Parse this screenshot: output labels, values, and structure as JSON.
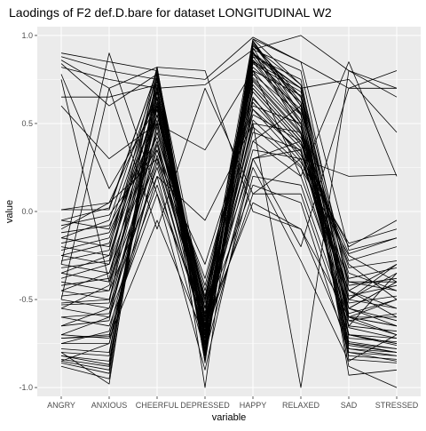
{
  "chart_data": {
    "type": "line",
    "title": "Laodings of F2 def.D.bare for dataset LONGITUDINAL W2",
    "xlabel": "variable",
    "ylabel": "value",
    "categories": [
      "ANGRY",
      "ANXIOUS",
      "CHEERFUL",
      "DEPRESSED",
      "HAPPY",
      "RELAXED",
      "SAD",
      "STRESSED"
    ],
    "ylim": [
      -1.05,
      1.05
    ],
    "yticks": [
      1.0,
      0.5,
      0.0,
      -0.5,
      -1.0
    ],
    "ytick_labels": [
      "1.0",
      "0.5",
      "0.0",
      "-0.5",
      "-1.0"
    ],
    "grid": true,
    "background": "#ebebeb",
    "gridline_color": "#ffffff",
    "line_color": "#000000",
    "series": [
      {
        "values": [
          0.9,
          0.85,
          0.8,
          -0.55,
          0.98,
          0.72,
          -0.55,
          -0.4
        ]
      },
      {
        "values": [
          0.88,
          0.8,
          0.75,
          -0.6,
          0.95,
          0.65,
          -0.6,
          -0.5
        ]
      },
      {
        "values": [
          0.86,
          0.7,
          0.82,
          -0.7,
          0.97,
          0.6,
          -0.5,
          -0.3
        ]
      },
      {
        "values": [
          0.84,
          0.6,
          0.78,
          0.75,
          0.99,
          0.85,
          0.7,
          0.7
        ]
      },
      {
        "values": [
          0.82,
          0.75,
          0.7,
          0.72,
          0.92,
          1.0,
          0.8,
          0.65
        ]
      },
      {
        "values": [
          0.78,
          0.13,
          0.6,
          -0.5,
          0.9,
          0.7,
          0.75,
          0.45
        ]
      },
      {
        "values": [
          0.75,
          -0.4,
          0.55,
          -0.65,
          0.88,
          0.55,
          -0.7,
          -0.75
        ]
      },
      {
        "values": [
          0.65,
          0.65,
          0.72,
          -0.8,
          0.85,
          0.5,
          -0.6,
          -0.6
        ]
      },
      {
        "values": [
          0.6,
          0.3,
          0.5,
          0.35,
          0.8,
          0.2,
          0.85,
          0.2
        ]
      },
      {
        "values": [
          0.01,
          0.01,
          0.8,
          -0.75,
          0.3,
          0.4,
          -0.3,
          -0.5
        ]
      },
      {
        "values": [
          -0.05,
          -0.1,
          0.7,
          -0.6,
          0.5,
          0.45,
          -0.35,
          -0.45
        ]
      },
      {
        "values": [
          -0.1,
          0.05,
          0.65,
          -0.55,
          0.4,
          0.6,
          -0.4,
          -0.4
        ]
      },
      {
        "values": [
          -0.15,
          -0.2,
          0.6,
          -0.7,
          0.45,
          0.35,
          -0.45,
          -0.6
        ]
      },
      {
        "values": [
          -0.2,
          -0.25,
          0.55,
          -0.65,
          0.35,
          0.3,
          -0.5,
          -0.55
        ]
      },
      {
        "values": [
          -0.25,
          -0.3,
          0.45,
          -0.5,
          0.55,
          0.4,
          -0.55,
          -0.65
        ]
      },
      {
        "values": [
          -0.3,
          -0.35,
          0.4,
          -0.75,
          0.6,
          0.5,
          -0.6,
          -0.7
        ]
      },
      {
        "values": [
          -0.35,
          -0.4,
          0.3,
          -0.6,
          0.48,
          0.25,
          -0.25,
          -0.4
        ]
      },
      {
        "values": [
          -0.4,
          -0.45,
          0.2,
          -0.8,
          0.2,
          0.15,
          -0.65,
          -0.35
        ]
      },
      {
        "values": [
          -0.45,
          -0.5,
          0.35,
          -0.55,
          0.3,
          0.35,
          -0.4,
          -0.45
        ]
      },
      {
        "values": [
          -0.5,
          -0.55,
          0.25,
          -0.7,
          0.1,
          0.1,
          -0.7,
          -0.75
        ]
      },
      {
        "values": [
          -0.55,
          -0.6,
          0.15,
          -0.65,
          0.05,
          -0.1,
          -0.75,
          -0.8
        ]
      },
      {
        "values": [
          -0.6,
          -0.65,
          0.1,
          -0.6,
          0.15,
          0.05,
          -0.8,
          -0.85
        ]
      },
      {
        "values": [
          -0.7,
          -0.72,
          -0.05,
          -0.72,
          0.25,
          -0.28,
          -0.85,
          -0.7
        ]
      },
      {
        "values": [
          -0.72,
          -0.71,
          0.28,
          -0.72,
          0.98,
          0.85,
          -0.22,
          -0.15
        ]
      },
      {
        "values": [
          -0.75,
          -0.75,
          0.5,
          -0.58,
          0.92,
          0.8,
          -0.45,
          -0.55
        ]
      },
      {
        "values": [
          -0.78,
          -0.8,
          0.6,
          -0.68,
          0.88,
          0.75,
          -0.6,
          -0.65
        ]
      },
      {
        "values": [
          -0.8,
          -0.82,
          0.7,
          -0.62,
          0.85,
          0.7,
          -0.7,
          -0.72
        ]
      },
      {
        "values": [
          -0.82,
          -0.85,
          0.65,
          -0.7,
          0.9,
          0.65,
          -0.65,
          -0.68
        ]
      },
      {
        "values": [
          -0.84,
          -0.88,
          0.75,
          -0.75,
          0.95,
          0.6,
          -0.72,
          -0.74
        ]
      },
      {
        "values": [
          -0.85,
          -0.9,
          0.8,
          -0.78,
          0.97,
          0.55,
          -0.75,
          -0.78
        ]
      },
      {
        "values": [
          -0.86,
          -0.92,
          0.72,
          -0.82,
          0.93,
          0.5,
          -0.78,
          -0.8
        ]
      },
      {
        "values": [
          -0.88,
          -0.95,
          0.68,
          -0.85,
          0.91,
          0.45,
          -0.8,
          -0.82
        ]
      },
      {
        "values": [
          -0.8,
          -0.98,
          0.78,
          -1.0,
          0.96,
          0.62,
          -0.88,
          -1.0
        ]
      },
      {
        "values": [
          -0.82,
          -0.87,
          0.62,
          -0.72,
          0.89,
          0.7,
          -0.93,
          -0.9
        ]
      },
      {
        "values": [
          -0.7,
          -0.6,
          0.4,
          -0.55,
          0.7,
          0.4,
          -0.5,
          -0.35
        ]
      },
      {
        "values": [
          -0.6,
          -0.58,
          0.45,
          -0.45,
          0.65,
          0.3,
          -0.45,
          -0.3
        ]
      },
      {
        "values": [
          -0.65,
          -0.62,
          0.55,
          -0.5,
          0.75,
          0.45,
          -0.55,
          -0.4
        ]
      },
      {
        "values": [
          -0.52,
          -0.5,
          0.58,
          -0.62,
          0.78,
          0.55,
          -0.62,
          -0.58
        ]
      },
      {
        "values": [
          -0.48,
          -0.45,
          0.62,
          -0.66,
          0.82,
          0.58,
          -0.58,
          -0.5
        ]
      },
      {
        "values": [
          -0.42,
          -0.38,
          0.68,
          -0.58,
          0.86,
          0.62,
          -0.52,
          -0.48
        ]
      },
      {
        "values": [
          -0.38,
          -0.3,
          0.74,
          -0.64,
          0.8,
          0.66,
          -0.48,
          -0.42
        ]
      },
      {
        "values": [
          -0.32,
          -0.28,
          0.78,
          -0.68,
          0.84,
          0.68,
          -0.42,
          -0.38
        ]
      },
      {
        "values": [
          -0.28,
          -0.22,
          0.82,
          -0.74,
          0.94,
          0.72,
          -0.38,
          -0.32
        ]
      },
      {
        "values": [
          -0.22,
          -0.15,
          0.6,
          -0.52,
          0.76,
          0.48,
          -0.32,
          -0.28
        ]
      },
      {
        "values": [
          -0.18,
          -0.12,
          0.5,
          -0.48,
          0.72,
          0.42,
          -0.28,
          -0.2
        ]
      },
      {
        "values": [
          -0.12,
          -0.08,
          0.42,
          -0.42,
          0.68,
          0.38,
          -0.24,
          -0.15
        ]
      },
      {
        "values": [
          -0.08,
          -0.02,
          0.35,
          -0.38,
          0.62,
          0.32,
          -0.2,
          -0.05
        ]
      },
      {
        "values": [
          0.01,
          0.05,
          0.3,
          -0.3,
          0.58,
          0.28,
          -0.18,
          -0.1
        ]
      },
      {
        "values": [
          -0.53,
          -0.52,
          0.82,
          0.8,
          0.0,
          -0.1,
          -0.6,
          -0.65
        ]
      },
      {
        "values": [
          -0.72,
          -0.7,
          0.2,
          -0.05,
          0.5,
          -1.0,
          0.8,
          0.7
        ]
      },
      {
        "values": [
          -0.5,
          0.7,
          -0.1,
          0.7,
          0.1,
          0.3,
          0.2,
          0.21
        ]
      },
      {
        "values": [
          -0.3,
          0.9,
          0.1,
          -0.9,
          0.3,
          -0.2,
          0.7,
          0.8
        ]
      },
      {
        "values": [
          -0.85,
          -0.75,
          0.32,
          -0.6,
          0.4,
          0.2,
          -0.55,
          -0.62
        ]
      },
      {
        "values": [
          -0.75,
          -0.68,
          0.38,
          -0.66,
          0.52,
          0.26,
          -0.62,
          -0.7
        ]
      },
      {
        "values": [
          -0.65,
          -0.55,
          0.48,
          -0.7,
          0.58,
          0.34,
          -0.66,
          -0.72
        ]
      },
      {
        "values": [
          -0.55,
          -0.42,
          0.52,
          -0.76,
          0.64,
          0.36,
          -0.7,
          -0.76
        ]
      },
      {
        "values": [
          -0.45,
          -0.35,
          0.58,
          -0.78,
          0.7,
          0.4,
          -0.74,
          -0.78
        ]
      },
      {
        "values": [
          -0.35,
          -0.25,
          0.64,
          -0.8,
          0.74,
          0.44,
          -0.76,
          -0.8
        ]
      },
      {
        "values": [
          -0.25,
          -0.18,
          0.7,
          -0.82,
          0.8,
          0.48,
          -0.78,
          -0.82
        ]
      },
      {
        "values": [
          -0.15,
          -0.05,
          0.76,
          -0.84,
          0.86,
          0.52,
          -0.82,
          -0.84
        ]
      },
      {
        "values": [
          -0.05,
          0.02,
          0.8,
          -0.86,
          0.9,
          0.56,
          -0.84,
          -0.86
        ]
      }
    ]
  }
}
